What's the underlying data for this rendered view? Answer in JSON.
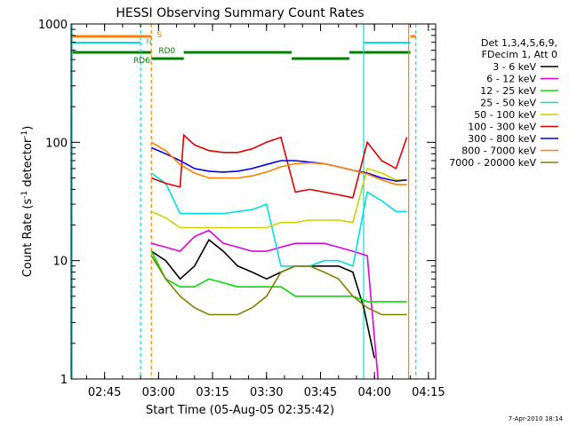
{
  "chart_data": {
    "type": "line",
    "title": "HESSI Observing Summary Count Rates",
    "xlabel": "Start Time (05-Aug-05 02:35:42)",
    "ylabel_main": "Count Rate (s",
    "ylabel_sup1": "-1",
    "ylabel_mid": " detector",
    "ylabel_sup2": "-1",
    "ylabel_end": ")",
    "yscale": "log",
    "ylim": [
      1,
      1000
    ],
    "xlim": [
      "02:35:42",
      "04:17:00"
    ],
    "x_ticks": [
      "02:45",
      "03:00",
      "03:15",
      "03:30",
      "03:45",
      "04:00",
      "04:15"
    ],
    "y_ticks": [
      "1",
      "10",
      "100",
      "1000"
    ],
    "legend": {
      "position": "top-right",
      "header": [
        "Det 1,3,4,5,6,9,",
        "FDecim 1, Att 0"
      ],
      "entries": [
        {
          "label": "3 - 6 keV",
          "color": "#000000"
        },
        {
          "label": "6 - 12 keV",
          "color": "#e000e0"
        },
        {
          "label": "12 - 25 keV",
          "color": "#00e000"
        },
        {
          "label": "25 - 50 keV",
          "color": "#00e0e0"
        },
        {
          "label": "50 - 100 keV",
          "color": "#d0d000"
        },
        {
          "label": "100 - 300 keV",
          "color": "#e00000"
        },
        {
          "label": "300 - 800 keV",
          "color": "#0000e0"
        },
        {
          "label": "800 - 7000 keV",
          "color": "#ff8000"
        },
        {
          "label": "7000 - 20000 keV",
          "color": "#808000"
        }
      ]
    },
    "flags": [
      {
        "label": "S",
        "color": "#ff8000"
      },
      {
        "label": "N",
        "color": "#00e0e0"
      },
      {
        "label": "RD0",
        "color": "#008000"
      },
      {
        "label": "RD6",
        "color": "#008000"
      }
    ],
    "series": [
      {
        "name": "3 - 6 keV",
        "x": [
          "02:58",
          "03:02",
          "03:06",
          "03:10",
          "03:14",
          "03:18",
          "03:22",
          "03:26",
          "03:30",
          "03:34",
          "03:38",
          "03:42",
          "03:46",
          "03:50",
          "03:54",
          "03:57",
          "04:00"
        ],
        "y": [
          12,
          10,
          7,
          9,
          15,
          12,
          9,
          8,
          7,
          8,
          9,
          9,
          9,
          9,
          8,
          4,
          1.5
        ]
      },
      {
        "name": "6 - 12 keV",
        "x": [
          "02:58",
          "03:02",
          "03:06",
          "03:10",
          "03:14",
          "03:18",
          "03:22",
          "03:26",
          "03:30",
          "03:34",
          "03:38",
          "03:42",
          "03:46",
          "03:50",
          "03:54",
          "03:58",
          "04:01"
        ],
        "y": [
          14,
          13,
          12,
          16,
          18,
          14,
          13,
          12,
          12,
          13,
          14,
          14,
          14,
          13,
          12,
          11,
          1
        ]
      },
      {
        "name": "12 - 25 keV",
        "x": [
          "02:58",
          "03:02",
          "03:06",
          "03:10",
          "03:14",
          "03:18",
          "03:22",
          "03:26",
          "03:30",
          "03:34",
          "03:38",
          "03:42",
          "03:46",
          "03:50",
          "03:54",
          "03:58",
          "04:02",
          "04:06",
          "04:09"
        ],
        "y": [
          12,
          7,
          6,
          6,
          7,
          6.5,
          6,
          6,
          6,
          6,
          5,
          5,
          5,
          5,
          5,
          4.5,
          4.5,
          4.5,
          4.5
        ]
      },
      {
        "name": "25 - 50 keV",
        "x": [
          "02:58",
          "03:02",
          "03:06",
          "03:10",
          "03:14",
          "03:18",
          "03:22",
          "03:26",
          "03:30",
          "03:34",
          "03:38",
          "03:42",
          "03:46",
          "03:50",
          "03:54",
          "03:58",
          "04:02",
          "04:06",
          "04:09"
        ],
        "y": [
          55,
          45,
          25,
          25,
          25,
          25,
          26,
          27,
          30,
          9,
          9,
          9,
          10,
          10,
          9,
          38,
          32,
          26,
          26
        ]
      },
      {
        "name": "50 - 100 keV",
        "x": [
          "02:58",
          "03:02",
          "03:06",
          "03:10",
          "03:14",
          "03:18",
          "03:22",
          "03:26",
          "03:30",
          "03:34",
          "03:38",
          "03:42",
          "03:46",
          "03:50",
          "03:54",
          "03:58",
          "04:02",
          "04:06",
          "04:09"
        ],
        "y": [
          26,
          23,
          19,
          19,
          19,
          19,
          19,
          19,
          19,
          21,
          21,
          22,
          22,
          22,
          21,
          60,
          55,
          48,
          48
        ]
      },
      {
        "name": "100 - 300 keV",
        "x": [
          "02:58",
          "03:02",
          "03:06",
          "03:07",
          "03:10",
          "03:14",
          "03:18",
          "03:22",
          "03:26",
          "03:30",
          "03:34",
          "03:38",
          "03:42",
          "03:46",
          "03:50",
          "03:54",
          "03:58",
          "04:02",
          "04:06",
          "04:09"
        ],
        "y": [
          50,
          45,
          42,
          115,
          95,
          85,
          82,
          82,
          88,
          100,
          110,
          38,
          40,
          38,
          36,
          34,
          100,
          70,
          60,
          110
        ]
      },
      {
        "name": "300 - 800 keV",
        "x": [
          "02:58",
          "03:02",
          "03:06",
          "03:10",
          "03:14",
          "03:18",
          "03:22",
          "03:26",
          "03:30",
          "03:34",
          "03:38",
          "03:42",
          "03:46",
          "03:50",
          "03:54",
          "03:58",
          "04:02",
          "04:06",
          "04:09"
        ],
        "y": [
          90,
          80,
          70,
          60,
          57,
          56,
          57,
          60,
          65,
          70,
          70,
          68,
          66,
          62,
          58,
          55,
          50,
          47,
          48
        ]
      },
      {
        "name": "800 - 7000 keV",
        "x": [
          "02:58",
          "03:02",
          "03:06",
          "03:10",
          "03:14",
          "03:18",
          "03:22",
          "03:26",
          "03:30",
          "03:34",
          "03:38",
          "03:42",
          "03:46",
          "03:50",
          "03:54",
          "03:58",
          "04:02",
          "04:06",
          "04:09"
        ],
        "y": [
          100,
          85,
          65,
          55,
          50,
          50,
          50,
          52,
          56,
          62,
          66,
          67,
          66,
          62,
          58,
          54,
          48,
          44,
          44
        ]
      },
      {
        "name": "7000 - 20000 keV",
        "x": [
          "02:58",
          "03:02",
          "03:06",
          "03:10",
          "03:14",
          "03:18",
          "03:22",
          "03:26",
          "03:30",
          "03:34",
          "03:38",
          "03:42",
          "03:46",
          "03:50",
          "03:54",
          "03:58",
          "04:02",
          "04:06",
          "04:09"
        ],
        "y": [
          11,
          7,
          5,
          4,
          3.5,
          3.5,
          3.5,
          4,
          5,
          8,
          9,
          9,
          8,
          7,
          5,
          4,
          3.5,
          3.5,
          3.5
        ]
      }
    ],
    "footer": "7-Apr-2010 18:14"
  }
}
